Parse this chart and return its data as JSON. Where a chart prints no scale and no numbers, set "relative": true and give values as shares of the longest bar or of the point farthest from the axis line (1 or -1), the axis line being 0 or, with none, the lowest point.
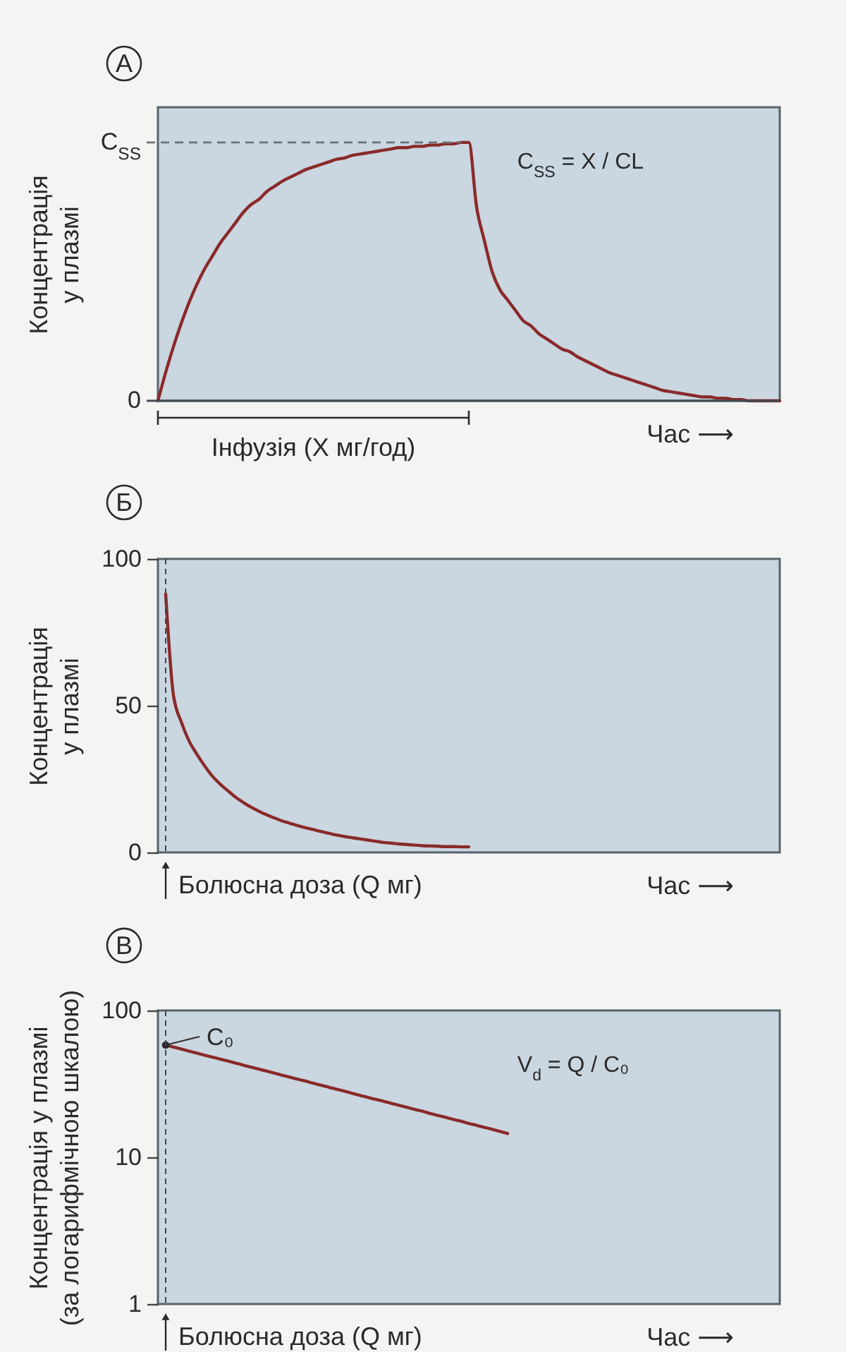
{
  "chart_data": [
    {
      "type": "line",
      "title": "А",
      "xlabel": "Час ⟶",
      "ylabel": "Концентрація у плазмі",
      "relative": true,
      "categories": [
        null,
        null,
        null,
        null,
        null,
        null,
        null,
        null,
        null,
        null,
        null,
        null,
        null,
        null,
        null,
        null,
        null,
        null,
        null,
        null,
        null,
        null,
        null,
        null,
        null,
        null,
        null,
        null,
        null,
        null,
        null,
        null,
        null,
        null,
        null,
        null,
        null,
        null,
        null,
        null,
        null,
        null,
        null,
        null,
        null,
        null,
        null,
        null,
        null,
        null,
        null,
        null,
        null,
        null,
        null,
        null,
        null,
        null,
        null,
        null,
        null,
        null,
        null,
        null,
        null,
        null,
        null,
        null,
        null,
        null,
        null,
        null,
        null,
        null,
        null,
        null,
        null,
        null,
        null,
        null,
        null
      ],
      "values": [
        0,
        0.11,
        0.21,
        0.3,
        0.38,
        0.45,
        0.51,
        0.56,
        0.61,
        0.65,
        0.69,
        0.73,
        0.76,
        0.78,
        0.81,
        0.83,
        0.85,
        0.865,
        0.88,
        0.895,
        0.905,
        0.915,
        0.925,
        0.935,
        0.94,
        0.95,
        0.955,
        0.96,
        0.965,
        0.97,
        0.975,
        0.98,
        0.98,
        0.985,
        0.985,
        0.99,
        0.99,
        0.995,
        0.995,
        1,
        1,
        0.75,
        0.62,
        0.5,
        0.43,
        0.39,
        0.35,
        0.31,
        0.29,
        0.26,
        0.24,
        0.22,
        0.2,
        0.19,
        0.17,
        0.155,
        0.14,
        0.125,
        0.11,
        0.1,
        0.09,
        0.08,
        0.07,
        0.06,
        0.05,
        0.04,
        0.035,
        0.03,
        0.025,
        0.02,
        0.015,
        0.015,
        0.01,
        0.01,
        0.005,
        0.005,
        0,
        0,
        0,
        0,
        0
      ],
      "color": "#8a2a2a",
      "ref_lines": [
        {
          "axis": "y",
          "value": 0,
          "label": "0",
          "color": "#3f4a52"
        },
        {
          "axis": "y",
          "value": 1,
          "label": "C$_{SS}$",
          "line_style": "dashed",
          "color": "#6e7175"
        }
      ],
      "annotations": [
        "C$_{SS}$ = X / CL",
        "Інфузія (X мг/год)"
      ]
    },
    {
      "type": "line",
      "title": "Б",
      "xlabel": "Час ⟶",
      "ylabel": "Концентрація у плазмі",
      "categories": [
        null,
        null,
        null,
        null,
        null,
        null,
        null,
        null,
        null,
        null,
        null,
        null,
        null,
        null,
        null,
        null,
        null,
        null,
        null,
        null,
        null,
        null,
        null,
        null,
        null,
        null,
        null,
        null,
        null,
        null,
        null,
        null,
        null,
        null,
        null,
        null,
        null,
        null,
        null,
        null,
        null,
        null,
        null,
        null,
        null,
        null,
        null,
        null,
        null,
        null,
        null,
        null,
        null,
        null,
        null,
        null,
        null,
        null,
        null,
        null,
        null,
        null,
        null,
        null,
        null,
        null,
        null,
        null,
        null,
        null,
        null,
        null,
        null,
        null,
        null,
        null,
        null,
        null,
        null,
        null,
        null
      ],
      "values": [
        null,
        88,
        53.5,
        44.5,
        38,
        33.5,
        29.5,
        26,
        23.3,
        21,
        18.8,
        17,
        15.4,
        14,
        12.8,
        11.7,
        10.7,
        9.9,
        9.1,
        8.4,
        7.8,
        7.1,
        6.5,
        5.9,
        5.4,
        5,
        4.6,
        4.2,
        3.8,
        3.4,
        3.2,
        2.9,
        2.7,
        2.5,
        2.3,
        2.2,
        2.1,
        2,
        2,
        1.9,
        1.9,
        null,
        null,
        null,
        null,
        null,
        null,
        null,
        null,
        null,
        null,
        null,
        null,
        null,
        null,
        null,
        null,
        null,
        null,
        null,
        null,
        null,
        null,
        null,
        null,
        null,
        null,
        null,
        null,
        null,
        null,
        null,
        null,
        null,
        null,
        null,
        null,
        null,
        null,
        null,
        null
      ],
      "color": "#8a2a2a",
      "ylim": [
        0,
        100
      ],
      "yticks": [
        0,
        50,
        100
      ],
      "annotations": [
        "Болюсна доза (Q мг)"
      ]
    },
    {
      "type": "line",
      "title": "В",
      "xlabel": "Час ⟶",
      "ylabel": "Концентрація у плазмі (за логарифмічною шкалою)",
      "log": true,
      "categories": [
        null,
        null,
        null,
        null,
        null,
        null,
        null,
        null,
        null,
        null,
        null,
        null,
        null,
        null,
        null,
        null,
        null,
        null,
        null,
        null,
        null,
        null,
        null,
        null,
        null,
        null,
        null,
        null,
        null,
        null,
        null,
        null,
        null,
        null,
        null,
        null,
        null,
        null,
        null,
        null,
        null,
        null,
        null,
        null,
        null,
        null,
        null,
        null,
        null,
        null,
        null,
        null,
        null,
        null,
        null,
        null,
        null,
        null,
        null,
        null,
        null,
        null,
        null,
        null,
        null,
        null,
        null,
        null,
        null,
        null,
        null,
        null,
        null,
        null,
        null,
        null,
        null,
        null,
        null,
        null,
        null
      ],
      "values": [
        null,
        58.1,
        56.3,
        54.6,
        52.9,
        51.2,
        49.6,
        48.1,
        46.6,
        45.2,
        43.8,
        42.4,
        41.1,
        39.8,
        38.6,
        37.4,
        36.2,
        35.1,
        34,
        33,
        31.9,
        31,
        30,
        29.1,
        28.2,
        27.3,
        26.4,
        25.6,
        24.8,
        24.1,
        23.3,
        22.6,
        21.9,
        21.2,
        20.6,
        19.9,
        19.3,
        18.7,
        18.1,
        17.6,
        17,
        16.5,
        16,
        15.5,
        15,
        14.5,
        null,
        null,
        null,
        null,
        null,
        null,
        null,
        null,
        null,
        null,
        null,
        null,
        null,
        null,
        null,
        null,
        null,
        null,
        null,
        null,
        null,
        null,
        null,
        null,
        null,
        null,
        null,
        null,
        null,
        null,
        null,
        null,
        null,
        null,
        null
      ],
      "color": "#8a2a2a",
      "ylim": [
        1,
        100
      ],
      "yticks": [
        1,
        10,
        100
      ],
      "annotations": [
        "C₀",
        "V$_{d}$ = Q / C₀",
        "Болюсна доза (Q мг)"
      ]
    }
  ]
}
